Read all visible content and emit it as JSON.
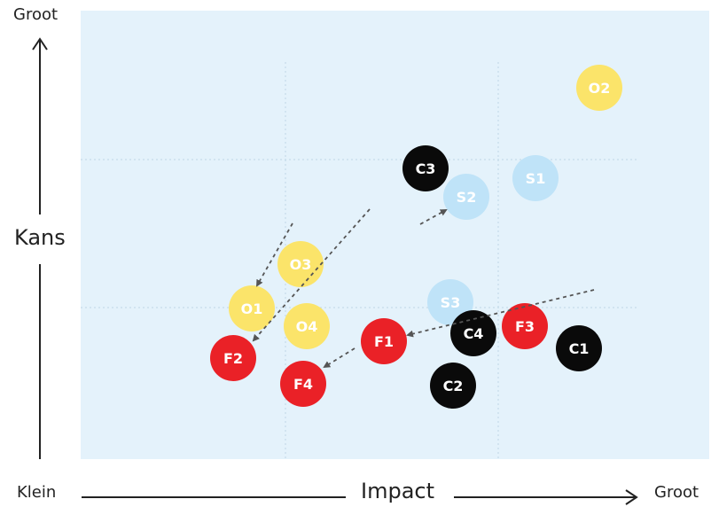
{
  "axes": {
    "y_top_label": "Groot",
    "y_title": "Kans",
    "x_left_label": "Klein",
    "x_title": "Impact",
    "x_right_label": "Groot"
  },
  "colors": {
    "background": "#e4f2fb",
    "gridline": "#c5dcea",
    "yellow": "#fbe46a",
    "red": "#ea2127",
    "black": "#0a0a0a",
    "lightblue": "#bfe3f8",
    "arrow": "#555555",
    "axis": "#222222"
  },
  "items": [
    {
      "id": "O2",
      "group": "yellow"
    },
    {
      "id": "C3",
      "group": "black"
    },
    {
      "id": "S2",
      "group": "lightblue"
    },
    {
      "id": "S1",
      "group": "lightblue"
    },
    {
      "id": "O3",
      "group": "yellow"
    },
    {
      "id": "O1",
      "group": "yellow"
    },
    {
      "id": "O4",
      "group": "yellow"
    },
    {
      "id": "S3",
      "group": "lightblue"
    },
    {
      "id": "F2",
      "group": "red"
    },
    {
      "id": "F1",
      "group": "red"
    },
    {
      "id": "C4",
      "group": "black"
    },
    {
      "id": "F3",
      "group": "red"
    },
    {
      "id": "C1",
      "group": "black"
    },
    {
      "id": "F4",
      "group": "red"
    },
    {
      "id": "C2",
      "group": "black"
    }
  ],
  "arrows": [
    {
      "from": "above-O3",
      "to": "O1"
    },
    {
      "from": "upper-center",
      "to": "F2"
    },
    {
      "from": "C3-area",
      "to": "S2"
    },
    {
      "from": "right",
      "to": "F1"
    },
    {
      "from": "F1",
      "to": "F4"
    }
  ]
}
